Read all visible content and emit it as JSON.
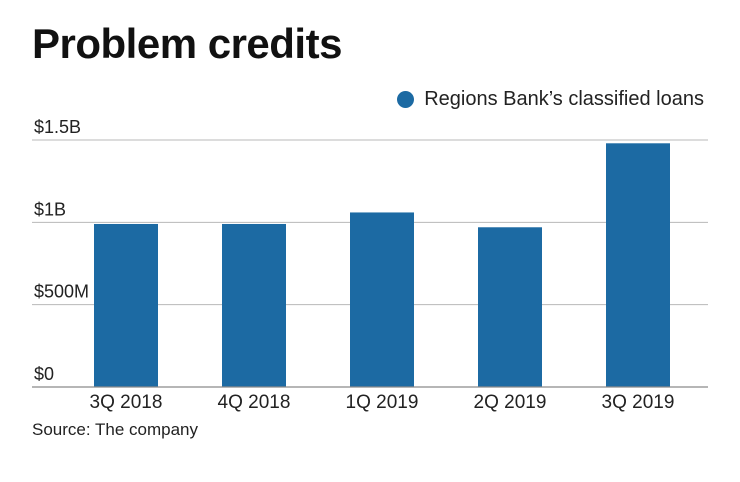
{
  "header": {
    "title": "Problem credits"
  },
  "legend": {
    "label": "Regions Bank’s classified loans"
  },
  "colors": {
    "bar": "#1c6aa3",
    "grid": "#b8b8b8",
    "axis": "#8a8a8a",
    "text": "#222222"
  },
  "chart_data": {
    "type": "bar",
    "title": "Problem credits",
    "xlabel": "",
    "ylabel": "",
    "categories": [
      "3Q 2018",
      "4Q 2018",
      "1Q 2019",
      "2Q 2019",
      "3Q 2019"
    ],
    "series": [
      {
        "name": "Regions Bank’s classified loans",
        "values": [
          0.99,
          0.99,
          1.06,
          0.97,
          1.48
        ]
      }
    ],
    "ylim": [
      0,
      1.5
    ],
    "y_ticks": [
      {
        "value": 0,
        "label": "$0"
      },
      {
        "value": 0.5,
        "label": "$500M"
      },
      {
        "value": 1,
        "label": "$1B"
      },
      {
        "value": 1.5,
        "label": "$1.5B"
      }
    ],
    "grid": true,
    "legend_position": "top-right"
  },
  "footer": {
    "source": "Source: The company"
  }
}
